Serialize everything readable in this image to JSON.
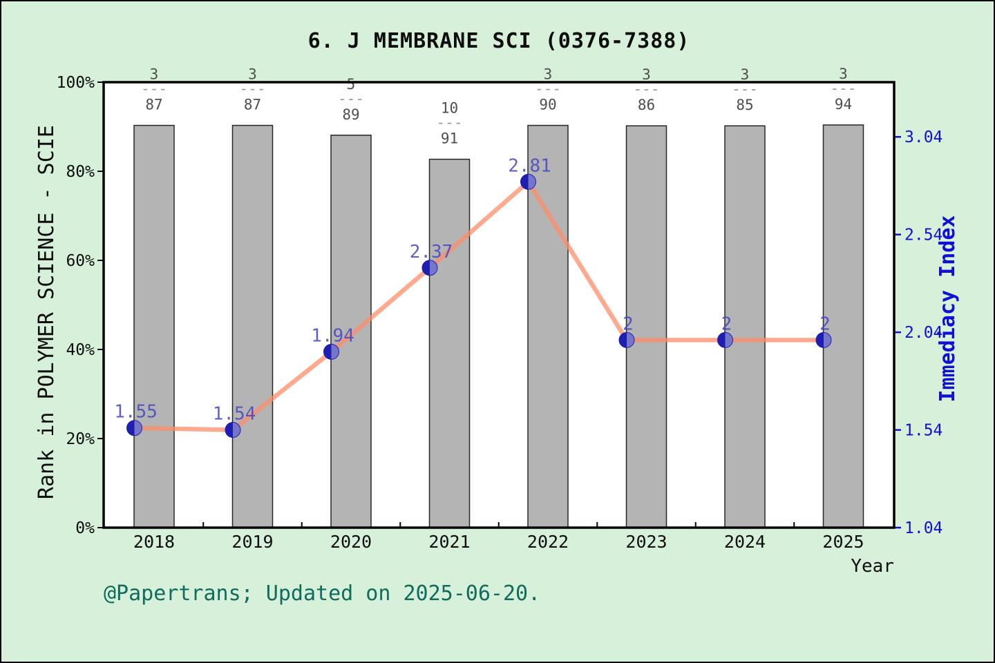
{
  "window": {
    "background_color": "#d7f0d9",
    "border_color": "#000000",
    "plot_background": "#ffffff"
  },
  "chart_data": {
    "type": "bar+line",
    "title": "6. J MEMBRANE SCI (0376-7388)",
    "xlabel": "Year",
    "categories": [
      "2018",
      "2019",
      "2020",
      "2021",
      "2022",
      "2023",
      "2024",
      "2025"
    ],
    "left_axis": {
      "label": "Rank in POLYMER SCIENCE - SCIE",
      "ticks": [
        "0%",
        "20%",
        "40%",
        "60%",
        "80%",
        "100%"
      ],
      "tick_values": [
        0,
        20,
        40,
        60,
        80,
        100
      ],
      "range": [
        0,
        100
      ],
      "color": "#0d0d0d"
    },
    "right_axis": {
      "label": "Immediacy Index",
      "ticks": [
        "1.04",
        "1.54",
        "2.04",
        "2.54",
        "3.04"
      ],
      "tick_values": [
        1.04,
        1.54,
        2.04,
        2.54,
        3.04
      ],
      "range": [
        1.04,
        3.32
      ],
      "color": "#0f0fd6"
    },
    "bars": {
      "series_name": "Rank in POLYMER SCIENCE - SCIE",
      "heights_pct": [
        90.3,
        90.3,
        88.1,
        82.7,
        90.3,
        90.2,
        90.2,
        90.4
      ],
      "rank_labels": [
        {
          "num": "3",
          "den": "87"
        },
        {
          "num": "3",
          "den": "87"
        },
        {
          "num": "5",
          "den": "89"
        },
        {
          "num": "10",
          "den": "91"
        },
        {
          "num": "3",
          "den": "90"
        },
        {
          "num": "3",
          "den": "86"
        },
        {
          "num": "3",
          "den": "85"
        },
        {
          "num": "3",
          "den": "94"
        }
      ],
      "fill": "#b4b4b4",
      "border": "#262626",
      "label_color": "#4d4d4d",
      "dash_color": "#979797",
      "dash_text": "---"
    },
    "line": {
      "series_name": "Immediacy Index",
      "values": [
        1.55,
        1.54,
        1.94,
        2.37,
        2.81,
        2,
        2,
        2
      ],
      "point_labels": [
        "1.55",
        "1.54",
        "1.94",
        "2.37",
        "2.81",
        "2",
        "2",
        "2"
      ],
      "color": "#ff8c69",
      "line_opacity": 0.75,
      "marker_color": "#1e1eb0",
      "marker_alt_color": "#7676c8",
      "value_label_color": "#4444c2"
    },
    "grid": false,
    "legend": "none"
  },
  "footer": {
    "credit": "@Papertrans; Updated on 2025-06-20."
  }
}
